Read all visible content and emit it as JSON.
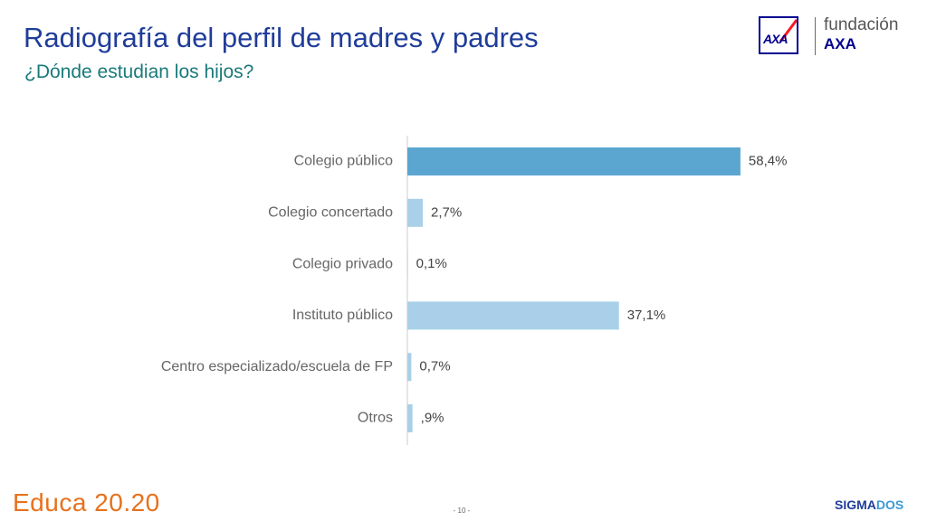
{
  "slide": {
    "title": "Radiografía del perfil de madres y padres",
    "subtitle": "¿Dónde estudian los hijos?",
    "page_number": "- 10 -"
  },
  "logo": {
    "icon": "axa-logo-icon",
    "axa_letters": "AXA",
    "line1": "fundación",
    "line2": "AXA"
  },
  "footer": {
    "brand": "Educa 20.20",
    "partner_part1": "SIGMA",
    "partner_part2": "DOS"
  },
  "colors": {
    "highlight_bar": "#5ba6d1",
    "normal_bar": "#a9d0e8",
    "axis": "#cccccc",
    "title": "#1f3d99",
    "subtitle": "#1a7a7a"
  },
  "chart_data": {
    "type": "bar",
    "orientation": "horizontal",
    "categories": [
      "Colegio público",
      "Colegio concertado",
      "Colegio privado",
      "Instituto público",
      "Centro especializado/escuela de FP",
      "Otros"
    ],
    "values": [
      58.4,
      2.7,
      0.1,
      37.1,
      0.7,
      0.9
    ],
    "value_labels": [
      "58,4%",
      "2,7%",
      "0,1%",
      "37,1%",
      "0,7%",
      ",9%"
    ],
    "highlight_index": 0,
    "xlim": [
      0,
      100
    ],
    "grid": false,
    "legend": "none"
  }
}
